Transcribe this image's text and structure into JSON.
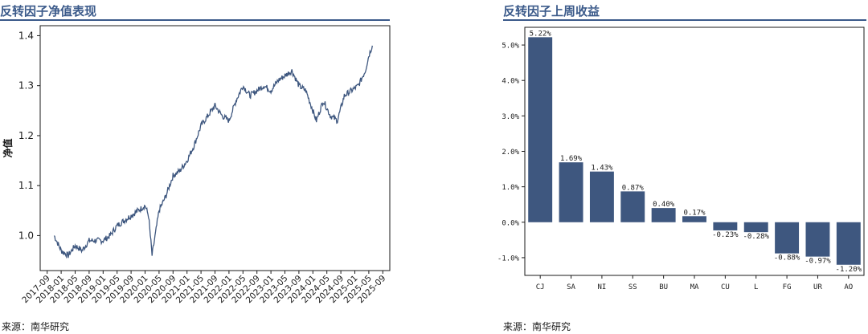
{
  "left": {
    "title": "反转因子净值表现",
    "ylabel": "净值",
    "source": "来源：南华研究"
  },
  "right": {
    "title": "反转因子上周收益",
    "source": "来源：南华研究"
  },
  "colors": {
    "series": "#3e577f",
    "bar": "#3e577f",
    "title": "#3b5a8a"
  },
  "chart_data": [
    {
      "type": "line",
      "title": "反转因子净值表现",
      "xlabel": "",
      "ylabel": "净值",
      "ylim": [
        0.93,
        1.42
      ],
      "yticks": [
        1.0,
        1.1,
        1.2,
        1.3,
        1.4
      ],
      "xticks": [
        "2017-09",
        "2018-01",
        "2018-05",
        "2018-09",
        "2019-01",
        "2019-05",
        "2019-09",
        "2020-01",
        "2020-05",
        "2020-09",
        "2021-01",
        "2021-05",
        "2021-09",
        "2022-01",
        "2022-05",
        "2022-09",
        "2023-01",
        "2023-05",
        "2023-09",
        "2024-01",
        "2024-05",
        "2024-09",
        "2025-01",
        "2025-05",
        "2025-09"
      ],
      "grid": false,
      "series": [
        {
          "x": [
            "2017-11",
            "2018-01",
            "2018-03",
            "2018-05",
            "2018-07",
            "2018-09",
            "2018-11",
            "2019-01",
            "2019-03",
            "2019-05",
            "2019-07",
            "2019-09",
            "2019-11",
            "2020-01",
            "2020-02",
            "2020-03",
            "2020-05",
            "2020-07",
            "2020-09",
            "2020-11",
            "2021-01",
            "2021-03",
            "2021-05",
            "2021-07",
            "2021-09",
            "2021-11",
            "2022-01",
            "2022-03",
            "2022-05",
            "2022-07",
            "2022-09",
            "2022-11",
            "2023-01",
            "2023-03",
            "2023-05",
            "2023-07",
            "2023-09",
            "2023-11",
            "2024-01",
            "2024-02",
            "2024-04",
            "2024-06",
            "2024-08",
            "2024-10",
            "2024-12",
            "2025-02",
            "2025-04",
            "2025-05",
            "2025-06"
          ],
          "values": [
            1.0,
            0.97,
            0.96,
            0.98,
            0.97,
            0.99,
            0.99,
            0.99,
            1.0,
            1.02,
            1.03,
            1.04,
            1.05,
            1.06,
            1.04,
            0.96,
            1.05,
            1.08,
            1.12,
            1.13,
            1.15,
            1.18,
            1.22,
            1.24,
            1.26,
            1.24,
            1.23,
            1.27,
            1.3,
            1.28,
            1.29,
            1.3,
            1.29,
            1.31,
            1.32,
            1.33,
            1.3,
            1.29,
            1.25,
            1.23,
            1.27,
            1.24,
            1.23,
            1.28,
            1.29,
            1.3,
            1.33,
            1.36,
            1.38
          ]
        }
      ]
    },
    {
      "type": "bar",
      "title": "反转因子上周收益",
      "categories": [
        "CJ",
        "SA",
        "NI",
        "SS",
        "BU",
        "MA",
        "CU",
        "L",
        "FG",
        "UR",
        "AO"
      ],
      "values": [
        5.22,
        1.69,
        1.43,
        0.87,
        0.4,
        0.17,
        -0.23,
        -0.28,
        -0.88,
        -0.97,
        -1.2
      ],
      "data_labels": [
        "5.22%",
        "1.69%",
        "1.43%",
        "0.87%",
        "0.40%",
        "0.17%",
        "-0.23%",
        "-0.28%",
        "-0.88%",
        "-0.97%",
        "-1.20%"
      ],
      "ylim": [
        -1.5,
        5.5
      ],
      "yticks": [
        -1.0,
        0.0,
        1.0,
        2.0,
        3.0,
        4.0,
        5.0
      ],
      "ytick_labels": [
        "-1.0%",
        "0.0%",
        "1.0%",
        "2.0%",
        "3.0%",
        "4.0%",
        "5.0%"
      ],
      "grid": false
    }
  ]
}
